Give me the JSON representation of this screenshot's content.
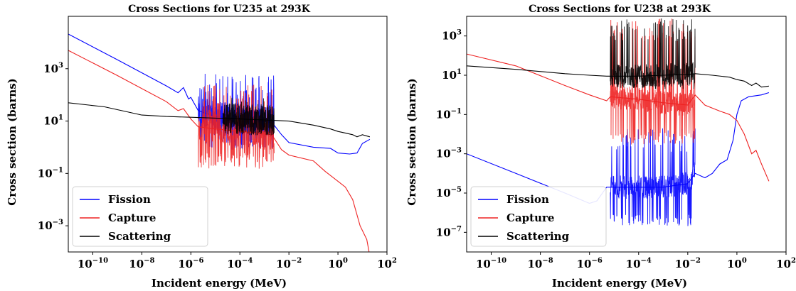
{
  "chart_data": [
    {
      "type": "line",
      "title": "Cross Sections for U235 at 293K",
      "xlabel": "Incident energy (MeV)",
      "ylabel": "Cross section (barns)",
      "xscale": "log",
      "yscale": "log",
      "xlim": [
        1e-11,
        100.0
      ],
      "ylim": [
        0.0001,
        100000.0
      ],
      "xticks": [
        {
          "value": 1e-10,
          "base": "10",
          "exp": "−10"
        },
        {
          "value": 1e-08,
          "base": "10",
          "exp": "−8"
        },
        {
          "value": 1e-06,
          "base": "10",
          "exp": "−6"
        },
        {
          "value": 0.0001,
          "base": "10",
          "exp": "−4"
        },
        {
          "value": 0.01,
          "base": "10",
          "exp": "−2"
        },
        {
          "value": 1,
          "base": "10",
          "exp": "0"
        },
        {
          "value": 100,
          "base": "10",
          "exp": "2"
        }
      ],
      "yticks": [
        {
          "value": 0.001,
          "base": "10",
          "exp": "−3"
        },
        {
          "value": 0.1,
          "base": "10",
          "exp": "−1"
        },
        {
          "value": 10,
          "base": "10",
          "exp": "1"
        },
        {
          "value": 1000,
          "base": "10",
          "exp": "3"
        }
      ],
      "legend_position": "lower-left",
      "grid": false,
      "series": [
        {
          "name": "Fission",
          "color": "#0000ff",
          "points": [
            [
              1e-11,
              21000
            ],
            [
              1e-09,
              2200
            ],
            [
              1e-07,
              220
            ],
            [
              3e-07,
              120
            ],
            [
              5e-07,
              190
            ],
            [
              8e-07,
              70
            ],
            [
              1e-06,
              80
            ],
            [
              2e-06,
              25
            ],
            [
              1e-05,
              15
            ],
            [
              0.0001,
              12
            ],
            [
              0.002,
              9
            ],
            [
              0.005,
              3
            ],
            [
              0.01,
              1.5
            ],
            [
              0.1,
              1.0
            ],
            [
              0.5,
              0.9
            ],
            [
              1,
              0.6
            ],
            [
              3,
              0.55
            ],
            [
              6,
              0.6
            ],
            [
              10,
              1.4
            ],
            [
              20,
              2.0
            ]
          ],
          "resonance": {
            "start": 2e-06,
            "end": 0.0025,
            "low": 0.8,
            "high": 700
          }
        },
        {
          "name": "Capture",
          "color": "#ee2222",
          "points": [
            [
              1e-11,
              5000
            ],
            [
              1e-09,
              550
            ],
            [
              1e-07,
              55
            ],
            [
              3e-07,
              25
            ],
            [
              5e-07,
              30
            ],
            [
              1e-06,
              12
            ],
            [
              2e-06,
              6
            ],
            [
              1e-05,
              5
            ],
            [
              0.0001,
              4
            ],
            [
              0.002,
              3
            ],
            [
              0.005,
              0.8
            ],
            [
              0.01,
              0.5
            ],
            [
              0.1,
              0.3
            ],
            [
              0.3,
              0.12
            ],
            [
              1,
              0.05
            ],
            [
              2,
              0.03
            ],
            [
              4,
              0.01
            ],
            [
              8,
              0.001
            ],
            [
              15,
              0.0003
            ],
            [
              20,
              7e-05
            ]
          ],
          "resonance": {
            "start": 2e-06,
            "end": 0.0025,
            "low": 0.15,
            "high": 300
          }
        },
        {
          "name": "Scattering",
          "color": "#000000",
          "points": [
            [
              1e-11,
              50
            ],
            [
              3e-10,
              35
            ],
            [
              1e-08,
              17
            ],
            [
              1e-07,
              15
            ],
            [
              1e-06,
              14
            ],
            [
              1e-05,
              13
            ],
            [
              0.0001,
              12
            ],
            [
              0.001,
              11
            ],
            [
              0.01,
              10
            ],
            [
              0.1,
              7
            ],
            [
              0.5,
              5
            ],
            [
              1,
              4
            ],
            [
              2,
              3.5
            ],
            [
              4,
              3
            ],
            [
              6,
              2.5
            ],
            [
              10,
              3
            ],
            [
              20,
              2.5
            ]
          ],
          "resonance": {
            "start": 2e-05,
            "end": 0.0025,
            "low": 5,
            "high": 80
          }
        }
      ]
    },
    {
      "type": "line",
      "title": "Cross Sections for U238 at 293K",
      "xlabel": "Incident energy (MeV)",
      "ylabel": "Cross section (barns)",
      "xscale": "log",
      "yscale": "log",
      "xlim": [
        1e-11,
        100.0
      ],
      "ylim": [
        1e-08,
        10000.0
      ],
      "xticks": [
        {
          "value": 1e-10,
          "base": "10",
          "exp": "−10"
        },
        {
          "value": 1e-08,
          "base": "10",
          "exp": "−8"
        },
        {
          "value": 1e-06,
          "base": "10",
          "exp": "−6"
        },
        {
          "value": 0.0001,
          "base": "10",
          "exp": "−4"
        },
        {
          "value": 0.01,
          "base": "10",
          "exp": "−2"
        },
        {
          "value": 1,
          "base": "10",
          "exp": "0"
        },
        {
          "value": 100,
          "base": "10",
          "exp": "2"
        }
      ],
      "yticks": [
        {
          "value": 1e-07,
          "base": "10",
          "exp": "−7"
        },
        {
          "value": 1e-05,
          "base": "10",
          "exp": "−5"
        },
        {
          "value": 0.001,
          "base": "10",
          "exp": "−3"
        },
        {
          "value": 0.1,
          "base": "10",
          "exp": "−1"
        },
        {
          "value": 10,
          "base": "10",
          "exp": "1"
        },
        {
          "value": 1000,
          "base": "10",
          "exp": "3"
        }
      ],
      "legend_position": "lower-left",
      "grid": false,
      "series": [
        {
          "name": "Fission",
          "color": "#0000ff",
          "points": [
            [
              1e-11,
              0.001
            ],
            [
              1e-09,
              0.0001
            ],
            [
              1e-07,
              1e-05
            ],
            [
              1e-06,
              3e-06
            ],
            [
              2e-06,
              4e-06
            ],
            [
              5e-06,
              2e-05
            ],
            [
              1e-05,
              2e-05
            ],
            [
              0.0001,
              2e-05
            ],
            [
              0.001,
              2e-05
            ],
            [
              0.01,
              3e-05
            ],
            [
              0.02,
              0.0001
            ],
            [
              0.05,
              6e-05
            ],
            [
              0.1,
              0.0001
            ],
            [
              0.2,
              0.0003
            ],
            [
              0.4,
              0.0005
            ],
            [
              0.7,
              0.005
            ],
            [
              1,
              0.1
            ],
            [
              1.5,
              0.5
            ],
            [
              3,
              0.8
            ],
            [
              10,
              1.0
            ],
            [
              20,
              1.3
            ]
          ],
          "resonance": {
            "start": 7e-06,
            "end": 0.02,
            "low": 2e-07,
            "high": 0.02
          }
        },
        {
          "name": "Capture",
          "color": "#ee2222",
          "points": [
            [
              1e-11,
              120
            ],
            [
              1e-09,
              30
            ],
            [
              1e-07,
              3
            ],
            [
              1e-06,
              1
            ],
            [
              5e-06,
              0.5
            ],
            [
              7e-06,
              0.8
            ],
            [
              0.0001,
              0.6
            ],
            [
              0.001,
              0.4
            ],
            [
              0.01,
              0.3
            ],
            [
              0.02,
              1
            ],
            [
              0.05,
              0.3
            ],
            [
              0.2,
              0.15
            ],
            [
              0.5,
              0.1
            ],
            [
              1,
              0.05
            ],
            [
              2,
              0.01
            ],
            [
              4,
              0.001
            ],
            [
              6,
              0.0015
            ],
            [
              10,
              0.0003
            ],
            [
              20,
              4e-05
            ]
          ],
          "resonance": {
            "start": 7e-06,
            "end": 0.02,
            "low": 0.003,
            "high": 8000
          }
        },
        {
          "name": "Scattering",
          "color": "#000000",
          "points": [
            [
              1e-11,
              30
            ],
            [
              1e-09,
              20
            ],
            [
              1e-07,
              12
            ],
            [
              1e-06,
              10
            ],
            [
              5e-06,
              9
            ],
            [
              0.0001,
              9
            ],
            [
              0.001,
              10
            ],
            [
              0.01,
              11
            ],
            [
              0.02,
              12
            ],
            [
              0.1,
              10
            ],
            [
              0.5,
              8
            ],
            [
              1,
              6
            ],
            [
              2,
              5
            ],
            [
              4,
              3
            ],
            [
              6,
              4
            ],
            [
              10,
              2.5
            ],
            [
              20,
              2.8
            ]
          ],
          "resonance": {
            "start": 7e-06,
            "end": 0.02,
            "low": 2,
            "high": 8000
          }
        }
      ]
    }
  ]
}
